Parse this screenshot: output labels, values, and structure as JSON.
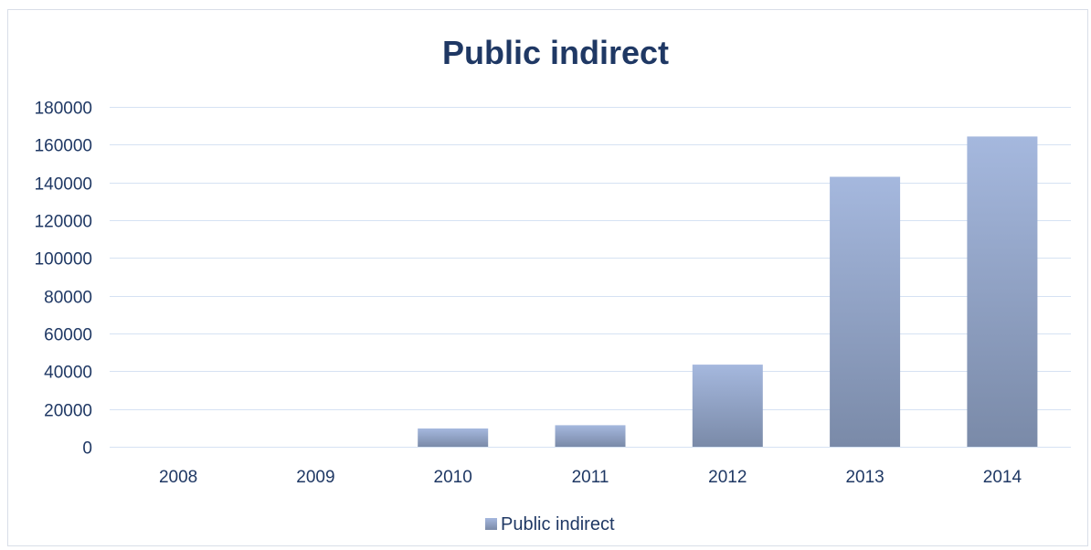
{
  "chart_data": {
    "type": "bar",
    "title": "Public indirect",
    "xlabel": "",
    "ylabel": "",
    "categories": [
      "2008",
      "2009",
      "2010",
      "2011",
      "2012",
      "2013",
      "2014"
    ],
    "series": [
      {
        "name": "Public indirect",
        "values": [
          0,
          0,
          9700,
          11400,
          43500,
          143000,
          164300
        ]
      }
    ],
    "ylim": [
      0,
      180000
    ],
    "yticks": [
      "0",
      "20000",
      "40000",
      "60000",
      "80000",
      "100000",
      "120000",
      "140000",
      "160000",
      "180000"
    ],
    "grid": true,
    "legend_position": "bottom",
    "colors": {
      "bar_top": "#a5b8de",
      "bar_bottom": "#7a8aa8",
      "text": "#1f3864",
      "grid": "#d6e2f3"
    }
  }
}
